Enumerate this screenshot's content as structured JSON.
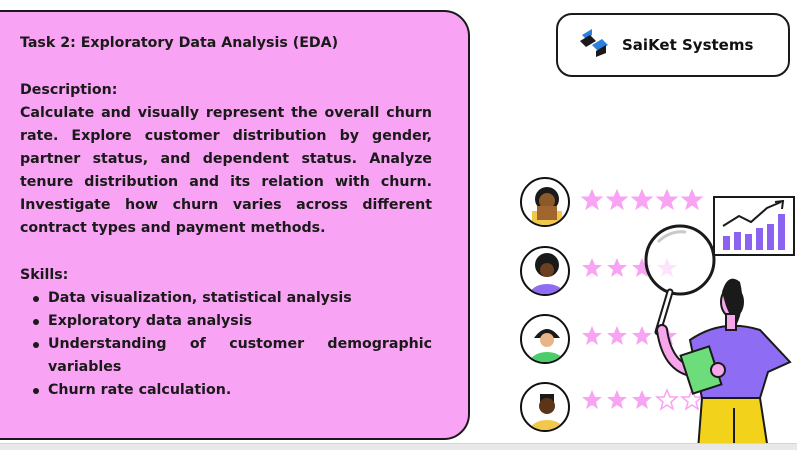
{
  "task": {
    "title": "Task 2: Exploratory Data Analysis (EDA)",
    "description_heading": "Description:",
    "description": "Calculate and visually represent the overall churn rate. Explore customer distribution by gender, partner status, and dependent status. Analyze tenure distribution and its relation with churn. Investigate how churn varies across different contract types and payment methods.",
    "skills_heading": "Skills:",
    "skills": [
      "Data visualization, statistical analysis",
      "Exploratory data analysis",
      "Understanding of customer demographic variables",
      "Churn rate calculation."
    ]
  },
  "brand": {
    "name": "SaiKet Systems",
    "logo_icon": "saiket-logo-icon"
  },
  "colors": {
    "card": "#f9a3f4",
    "star": "#f9a3f4",
    "accent_purple": "#8e6cf3",
    "chart_purple": "#8b63f0"
  },
  "ratings": [
    {
      "icon": "reviewer-1-avatar",
      "stars": 5
    },
    {
      "icon": "reviewer-2-avatar",
      "stars": 4
    },
    {
      "icon": "reviewer-3-avatar",
      "stars": 4
    },
    {
      "icon": "reviewer-4-avatar",
      "stars": 3
    }
  ]
}
